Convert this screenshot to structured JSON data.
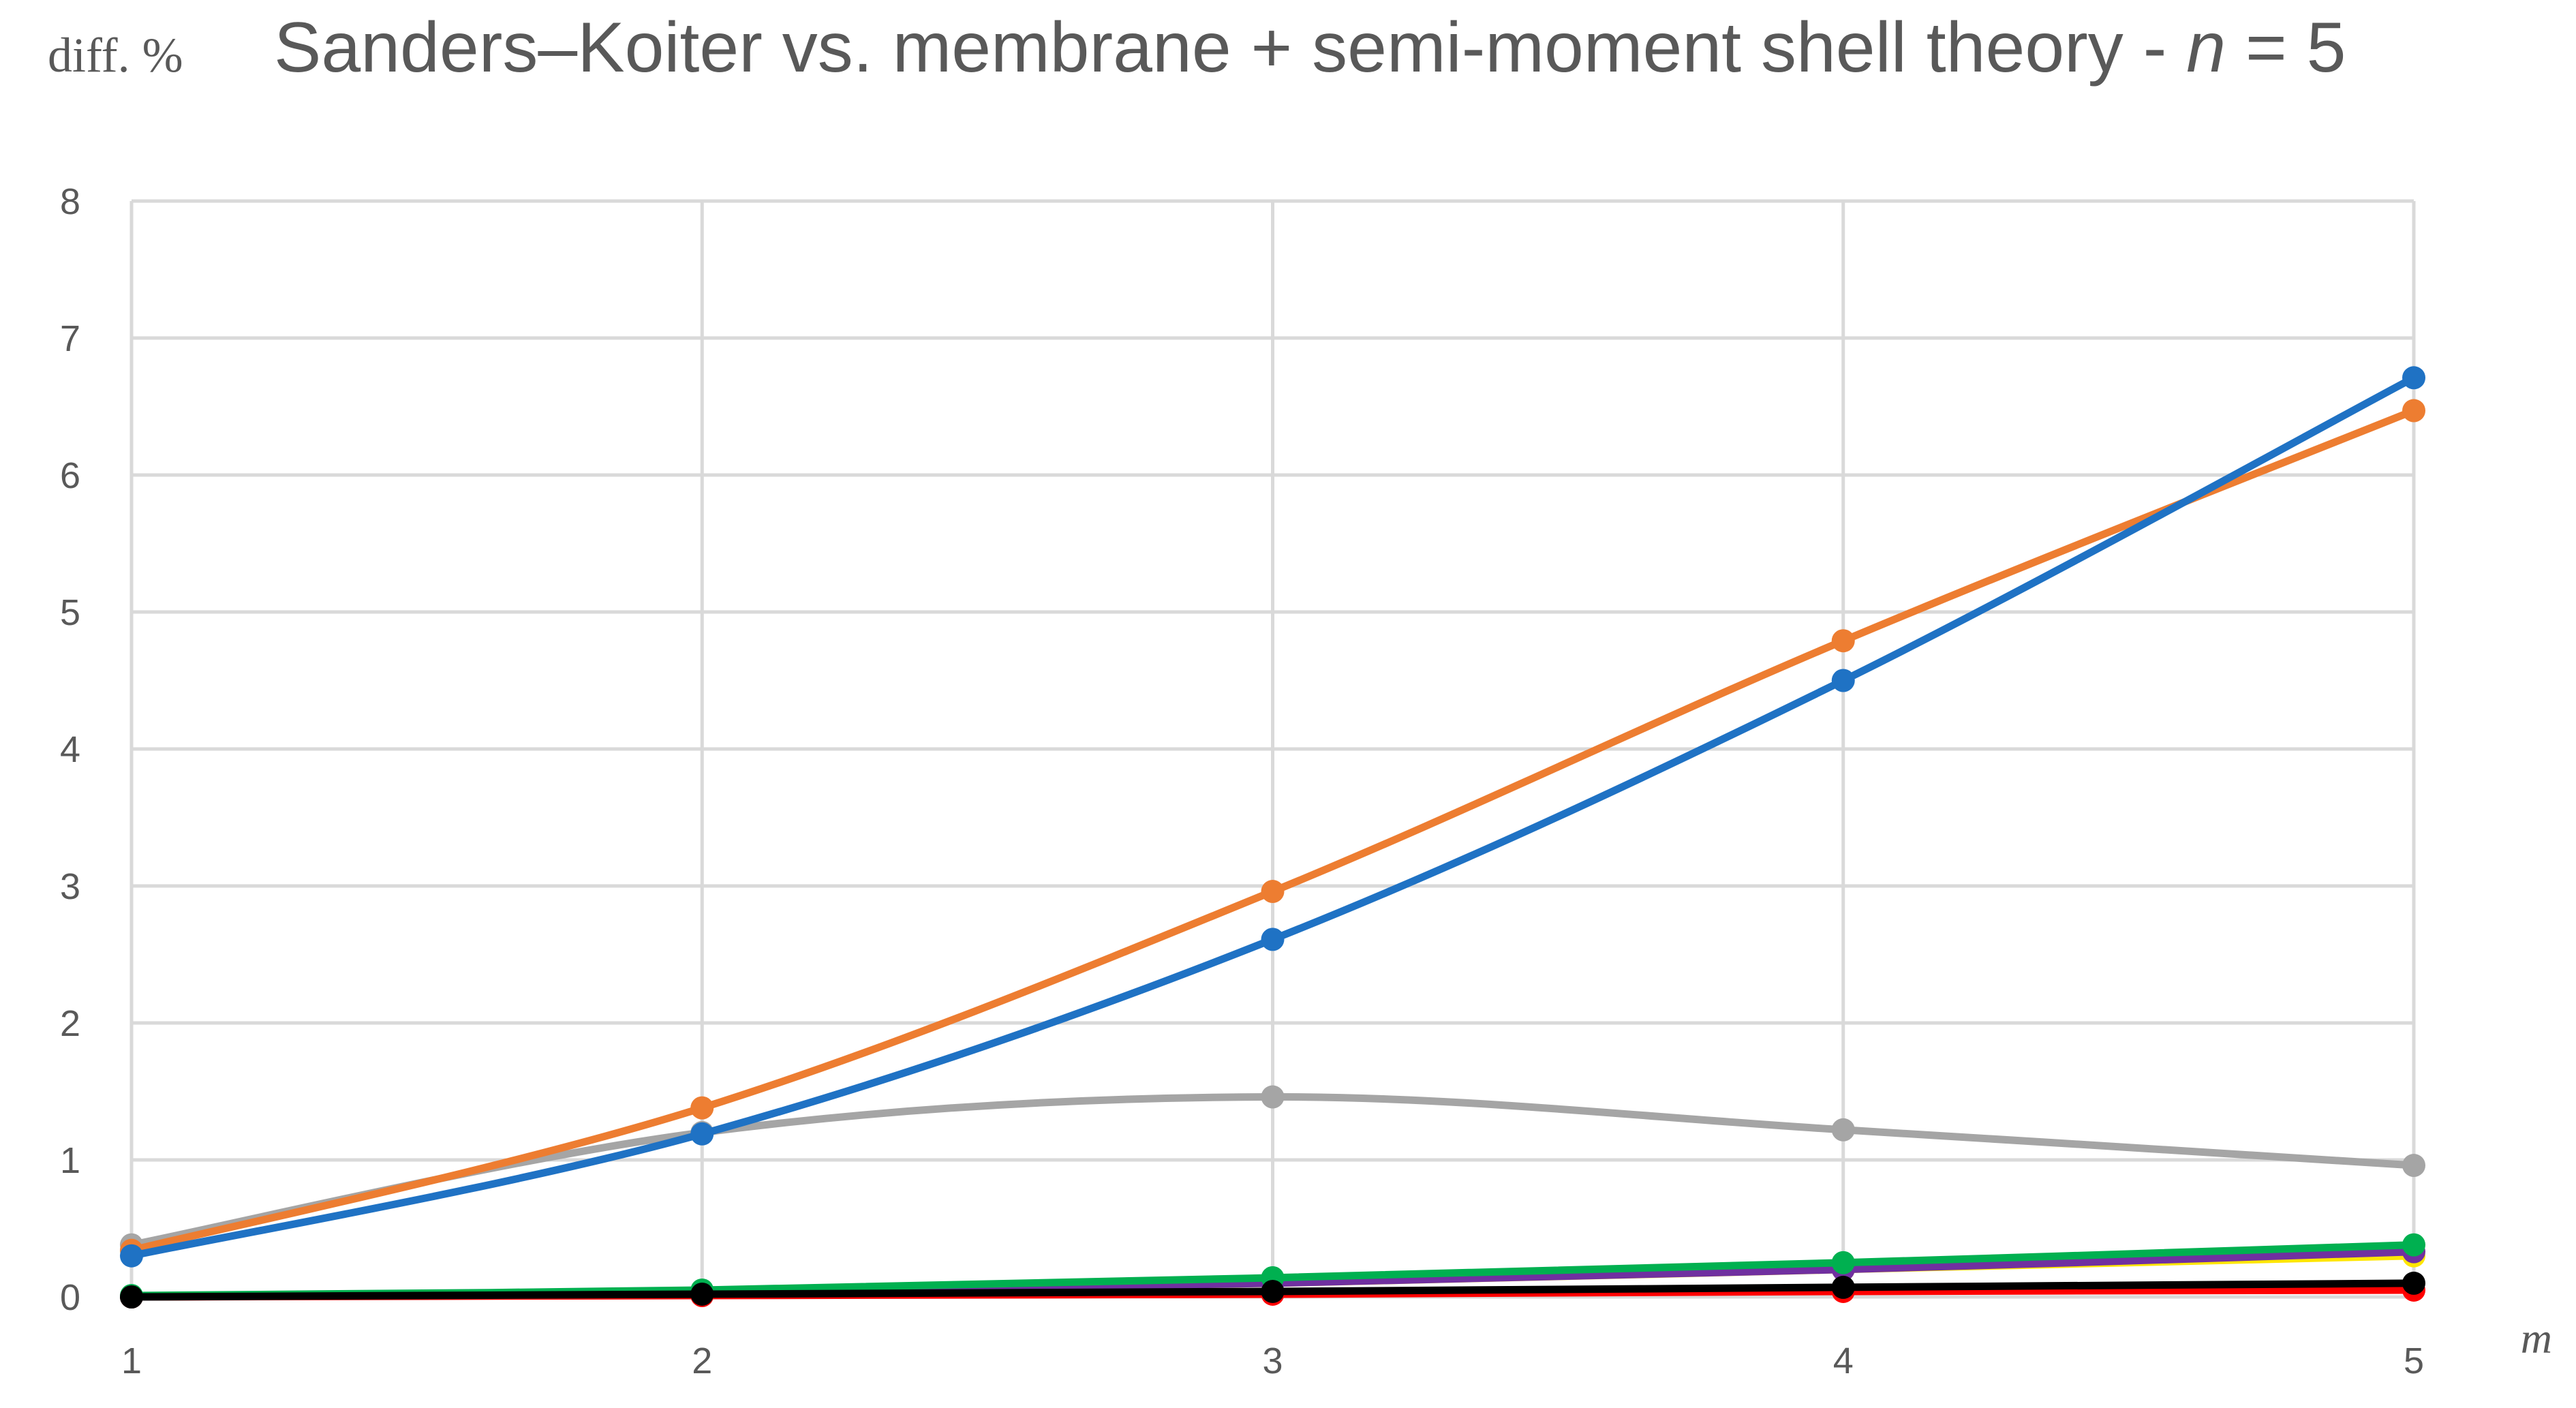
{
  "chart_data": {
    "type": "line",
    "title": {
      "main": "Sanders–Koiter vs. membrane + semi-moment shell theory - ",
      "var": "n",
      "rest": " = 5"
    },
    "ylabel": "diff. %",
    "xlabel": "m",
    "x": [
      1,
      2,
      3,
      4,
      5
    ],
    "xlim": [
      1,
      5
    ],
    "ylim": [
      0,
      8
    ],
    "x_ticks": [
      "1",
      "2",
      "3",
      "4",
      "5"
    ],
    "y_ticks": [
      "0",
      "1",
      "2",
      "3",
      "4",
      "5",
      "6",
      "7",
      "8"
    ],
    "grid": true,
    "legend": "none",
    "series": [
      {
        "color": "#ff0000",
        "values": [
          0.0,
          0.01,
          0.02,
          0.04,
          0.05
        ]
      },
      {
        "color": "#ffe600",
        "values": [
          0.0,
          0.03,
          0.1,
          0.2,
          0.3
        ]
      },
      {
        "color": "#7030a0",
        "values": [
          0.0,
          0.03,
          0.1,
          0.2,
          0.33
        ]
      },
      {
        "color": "#00b050",
        "values": [
          0.01,
          0.05,
          0.14,
          0.25,
          0.38
        ]
      },
      {
        "color": "#000000",
        "values": [
          0.0,
          0.02,
          0.04,
          0.07,
          0.1
        ]
      },
      {
        "color": "#a5a5a5",
        "values": [
          0.38,
          1.2,
          1.46,
          1.22,
          0.96
        ]
      },
      {
        "color": "#ed7d31",
        "values": [
          0.34,
          1.38,
          2.96,
          4.79,
          6.47
        ]
      },
      {
        "color": "#1f72c4",
        "values": [
          0.3,
          1.19,
          2.61,
          4.5,
          6.71
        ]
      }
    ]
  }
}
